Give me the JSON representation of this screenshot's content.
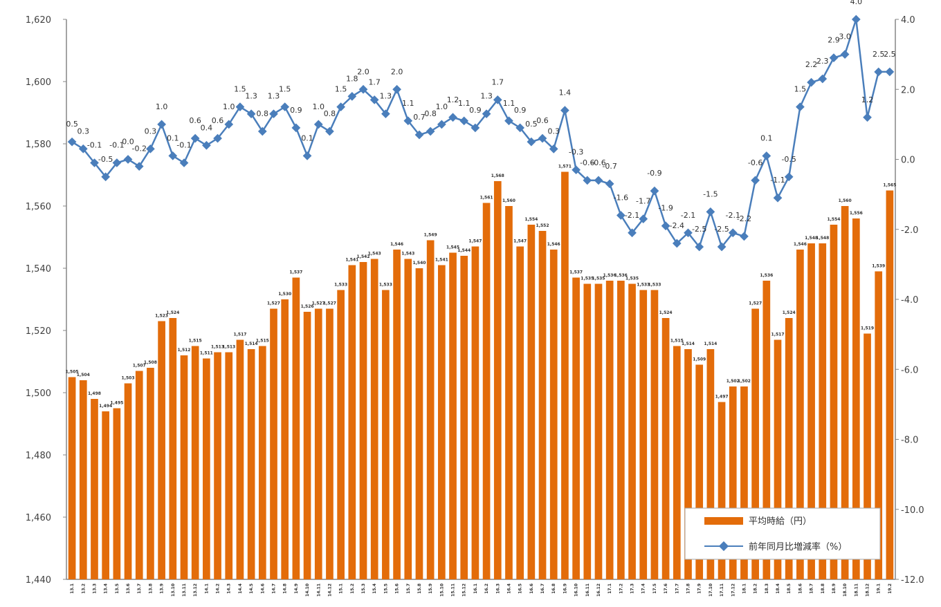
{
  "chart_data": {
    "type": "bar",
    "categories": [
      "13.1",
      "13.2",
      "13.3",
      "13.4",
      "13.5",
      "13.6",
      "13.7",
      "13.8",
      "13.9",
      "13.10",
      "13.11",
      "13.12",
      "14.1",
      "14.2",
      "14.3",
      "14.4",
      "14.5",
      "14.6",
      "14.7",
      "14.8",
      "14.9",
      "14.10",
      "14.11",
      "14.12",
      "15.1",
      "15.2",
      "15.3",
      "15.4",
      "15.5",
      "15.6",
      "15.7",
      "15.8",
      "15.9",
      "15.10",
      "15.11",
      "15.12",
      "16.1",
      "16.2",
      "16.3",
      "16.4",
      "16.5",
      "16.6",
      "16.7",
      "16.8",
      "16.9",
      "16.10",
      "16.11",
      "16.12",
      "17.1",
      "17.2",
      "17.3",
      "17.4",
      "17.5",
      "17.6",
      "17.7",
      "17.8",
      "17.9",
      "17.10",
      "17.11",
      "17.12",
      "18.1",
      "18.2",
      "18.3",
      "18.4",
      "18.5",
      "18.6",
      "18.7",
      "18.8",
      "18.9",
      "18.10",
      "18.11",
      "18.12",
      "19.1",
      "19.2"
    ],
    "series": [
      {
        "name": "平均時給（円）",
        "type": "bar",
        "axis": "left",
        "color": "#E36C0A",
        "values": [
          1505,
          1504,
          1498,
          1494,
          1495,
          1503,
          1507,
          1508,
          1523,
          1524,
          1512,
          1515,
          1511,
          1513,
          1513,
          1517,
          1514,
          1515,
          1527,
          1530,
          1537,
          1526,
          1527,
          1527,
          1533,
          1541,
          1542,
          1543,
          1533,
          1546,
          1543,
          1540,
          1549,
          1541,
          1545,
          1544,
          1547,
          1561,
          1568,
          1560,
          1547,
          1554,
          1552,
          1546,
          1571,
          1537,
          1535,
          1535,
          1536,
          1536,
          1535,
          1533,
          1533,
          1524,
          1515,
          1514,
          1509,
          1514,
          1497,
          1502,
          1502,
          1527,
          1536,
          1517,
          1524,
          1546,
          1548,
          1548,
          1554,
          1560,
          1556,
          1519,
          1539,
          1565
        ],
        "labels": [
          "1,505",
          "1,504",
          "1,498",
          "1,494",
          "1,495",
          "1,503",
          "1,507",
          "1,508",
          "1,523",
          "1,524",
          "1,512",
          "1,515",
          "1,511",
          "1,513",
          "1,513",
          "1,517",
          "1,514",
          "1,515",
          "1,527",
          "1,530",
          "1,537",
          "1,526",
          "1,527",
          "1,527",
          "1,533",
          "1,541",
          "1,542",
          "1,543",
          "1,533",
          "1,546",
          "1,543",
          "1,540",
          "1,549",
          "1,541",
          "1,545",
          "1,544",
          "1,547",
          "1,561",
          "1,568",
          "1,560",
          "1,547",
          "1,554",
          "1,552",
          "1,546",
          "1,571",
          "1,537",
          "1,535",
          "1,535",
          "1,536",
          "1,536",
          "1,535",
          "1,533",
          "1,533",
          "1,524",
          "1,515",
          "1,514",
          "1,509",
          "1,514",
          "1,497",
          "1,502",
          "1,502",
          "1,527",
          "1,536",
          "1,517",
          "1,524",
          "1,546",
          "1,548",
          "1,548",
          "1,554",
          "1,560",
          "1,556",
          "1,519",
          "1,539",
          "1,565"
        ]
      },
      {
        "name": "前年同月比増減率（%）",
        "type": "line",
        "axis": "right",
        "color": "#4A7EBB",
        "marker": "diamond",
        "values": [
          0.5,
          0.3,
          -0.1,
          -0.5,
          -0.1,
          0.0,
          -0.2,
          0.3,
          1.0,
          0.1,
          -0.1,
          0.6,
          0.4,
          0.6,
          1.0,
          1.5,
          1.3,
          0.8,
          1.3,
          1.5,
          0.9,
          0.1,
          1.0,
          0.8,
          1.5,
          1.8,
          2.0,
          1.7,
          1.3,
          2.0,
          1.1,
          0.7,
          0.8,
          1.0,
          1.2,
          1.1,
          0.9,
          1.3,
          1.7,
          1.1,
          0.9,
          0.5,
          0.6,
          0.3,
          1.4,
          -0.3,
          -0.6,
          -0.6,
          -0.7,
          -1.6,
          -2.1,
          -1.7,
          -0.9,
          -1.9,
          -2.4,
          -2.1,
          -2.5,
          -1.5,
          -2.5,
          -2.1,
          -2.2,
          -0.6,
          0.1,
          -1.1,
          -0.5,
          1.5,
          2.2,
          2.3,
          2.9,
          3.0,
          4.0,
          1.2,
          2.5,
          2.5
        ],
        "labels": [
          "0.5",
          "0.3",
          "-0.1",
          "-0.5",
          "-0.1",
          "0.0",
          "-0.2",
          "0.3",
          "1.0",
          "0.1",
          "-0.1",
          "0.6",
          "0.4",
          "0.6",
          "1.0",
          "1.5",
          "1.3",
          "0.8",
          "1.3",
          "1.5",
          "0.9",
          "0.1",
          "1.0",
          "0.8",
          "1.5",
          "1.8",
          "2.0",
          "1.7",
          "1.3",
          "2.0",
          "1.1",
          "0.7",
          "0.8",
          "1.0",
          "1.2",
          "1.1",
          "0.9",
          "1.3",
          "1.7",
          "1.1",
          "0.9",
          "0.5",
          "0.6",
          "0.3",
          "1.4",
          "-0.3",
          "-0.6",
          "-0.6",
          "-0.7",
          "-1.6",
          "-2.1",
          "-1.7",
          "-0.9",
          "-1.9",
          "-2.4",
          "-2.1",
          "-2.5",
          "-1.5",
          "-2.5",
          "-2.1",
          "-2.2",
          "-0.6",
          "0.1",
          "-1.1",
          "-0.5",
          "1.5",
          "2.2",
          "2.3",
          "2.9",
          "3.0",
          "4.0",
          "1.2",
          "2.5",
          "2.5"
        ]
      }
    ],
    "left_axis": {
      "ylim": [
        1440,
        1620
      ],
      "ticks": [
        1440,
        1460,
        1480,
        1500,
        1520,
        1540,
        1560,
        1580,
        1600,
        1620
      ],
      "tick_labels": [
        "1,440",
        "1,460",
        "1,480",
        "1,500",
        "1,520",
        "1,540",
        "1,560",
        "1,580",
        "1,600",
        "1,620"
      ]
    },
    "right_axis": {
      "ylim": [
        -12.0,
        4.0
      ],
      "ticks": [
        -12,
        -10,
        -8,
        -6,
        -4,
        -2,
        0,
        2,
        4
      ],
      "tick_labels": [
        "-12.0",
        "-10.0",
        "-8.0",
        "-6.0",
        "-4.0",
        "-2.0",
        "0.0",
        "2.0",
        "4.0"
      ]
    },
    "grid": false,
    "legend_position": "bottom-right",
    "legend": [
      {
        "label": "平均時給（円）",
        "kind": "bar",
        "color": "#E36C0A"
      },
      {
        "label": "前年同月比増減率（%）",
        "kind": "line-diamond",
        "color": "#4A7EBB"
      }
    ]
  }
}
